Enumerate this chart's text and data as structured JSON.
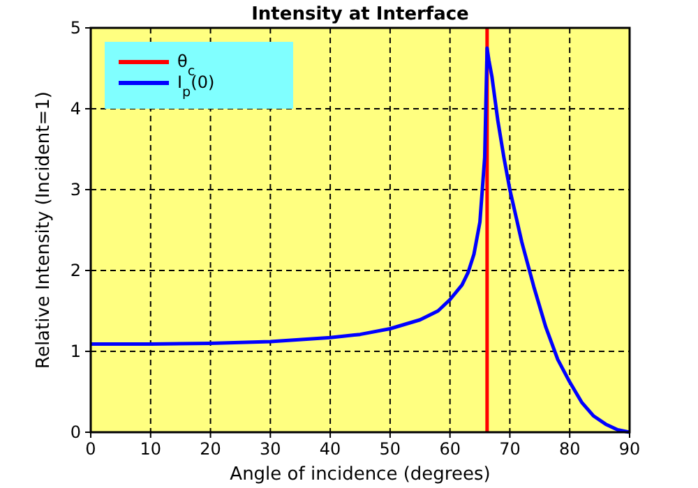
{
  "chart_data": {
    "type": "line",
    "title": "Intensity at Interface",
    "xlabel": "Angle of incidence (degrees)",
    "ylabel": "Relative Intensity (Incident=1)",
    "xlim": [
      0,
      90
    ],
    "ylim": [
      0,
      5
    ],
    "xticks": [
      0,
      10,
      20,
      30,
      40,
      50,
      60,
      70,
      80,
      90
    ],
    "yticks": [
      0,
      1,
      2,
      3,
      4,
      5
    ],
    "grid": true,
    "legend": "top left",
    "series": [
      {
        "name": "θ$_{c}$",
        "color": "#ff0000",
        "x": [
          66.2,
          66.2
        ],
        "values": [
          0,
          5
        ]
      },
      {
        "name": "I$_{p}$(0)",
        "color": "#0000ff",
        "x": [
          0,
          10,
          20,
          30,
          40,
          45,
          50,
          55,
          58,
          60,
          62,
          63,
          64,
          65,
          65.8,
          66.2,
          66.5,
          67,
          68,
          69,
          70,
          72,
          74,
          76,
          78,
          80,
          82,
          84,
          86,
          88,
          90
        ],
        "values": [
          1.09,
          1.09,
          1.1,
          1.12,
          1.17,
          1.21,
          1.28,
          1.39,
          1.5,
          1.64,
          1.82,
          1.97,
          2.2,
          2.6,
          3.4,
          4.75,
          4.6,
          4.4,
          3.85,
          3.4,
          3.0,
          2.35,
          1.8,
          1.3,
          0.9,
          0.62,
          0.37,
          0.2,
          0.1,
          0.03,
          0
        ]
      }
    ]
  }
}
